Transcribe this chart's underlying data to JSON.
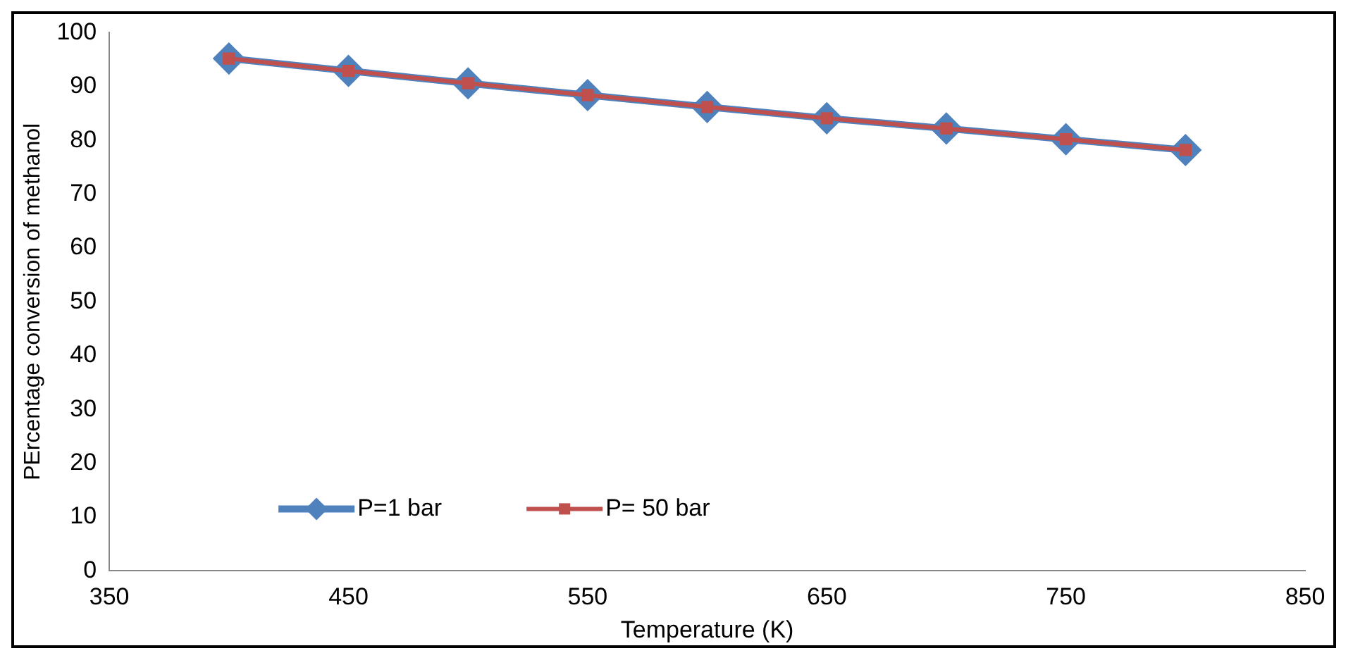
{
  "chart_data": {
    "type": "line",
    "xlabel": "Temperature (K)",
    "ylabel": "PErcentage conversion of methanol",
    "x": [
      400,
      450,
      500,
      550,
      600,
      650,
      700,
      750,
      800
    ],
    "series": [
      {
        "name": "P=1 bar",
        "color": "#4f81bd",
        "marker": "diamond",
        "values": [
          95.2,
          92.9,
          90.6,
          88.4,
          86.2,
          84.1,
          82.2,
          80.2,
          78.2
        ]
      },
      {
        "name": "P= 50 bar",
        "color": "#c0504d",
        "marker": "square",
        "values": [
          95.2,
          92.9,
          90.6,
          88.4,
          86.2,
          84.1,
          82.2,
          80.2,
          78.2
        ]
      }
    ],
    "xlim": [
      350,
      850
    ],
    "xticks": [
      350,
      450,
      550,
      650,
      750,
      850
    ],
    "ylim": [
      0,
      100
    ],
    "yticks": [
      0,
      10,
      20,
      30,
      40,
      50,
      60,
      70,
      80,
      90,
      100
    ],
    "grid": false,
    "legend": "bottom left"
  }
}
